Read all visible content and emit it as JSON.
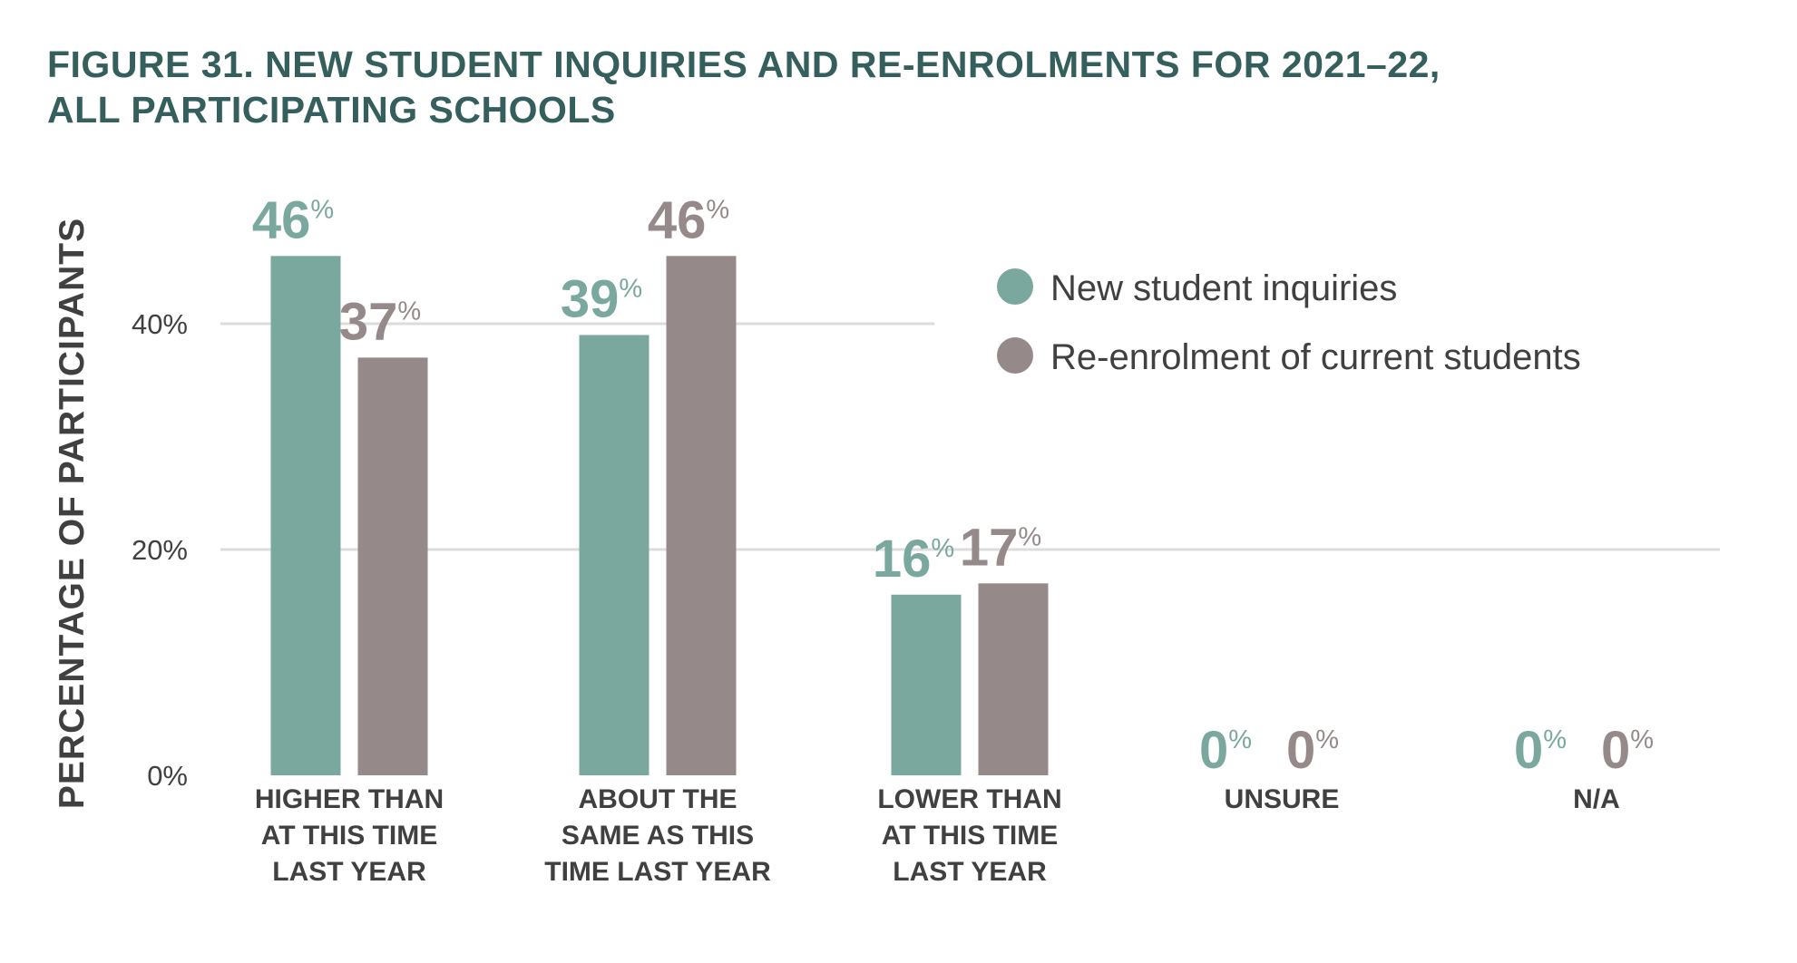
{
  "chart_data": {
    "type": "bar",
    "title_lines": [
      "FIGURE 31. NEW STUDENT INQUIRIES AND RE-ENROLMENTS FOR 2021–22,",
      "ALL PARTICIPATING SCHOOLS"
    ],
    "title": "FIGURE 31. NEW STUDENT INQUIRIES AND RE-ENROLMENTS FOR 2021–22, ALL PARTICIPATING SCHOOLS",
    "xlabel": "",
    "ylabel": "PERCENTAGE OF PARTICIPANTS",
    "ylim": [
      0,
      50
    ],
    "yticks": [
      0,
      20,
      40
    ],
    "ytick_labels": [
      "0%",
      "20%",
      "40%"
    ],
    "grid": true,
    "legend_position": "top-right",
    "categories": [
      [
        "HIGHER THAN",
        "AT THIS TIME",
        "LAST YEAR"
      ],
      [
        "ABOUT THE",
        "SAME AS THIS",
        "TIME LAST YEAR"
      ],
      [
        "LOWER THAN",
        "AT THIS TIME",
        "LAST YEAR"
      ],
      [
        "UNSURE"
      ],
      [
        "N/A"
      ]
    ],
    "series": [
      {
        "name": "New student inquiries",
        "color": "#7aa89e",
        "values": [
          46,
          39,
          16,
          0,
          0
        ]
      },
      {
        "name": "Re-enrolment of current students",
        "color": "#958a89",
        "values": [
          37,
          46,
          17,
          0,
          0
        ]
      }
    ],
    "value_suffix": "%"
  },
  "colors": {
    "title": "#355f5c",
    "text": "#404040",
    "grid": "#dcdcdc"
  }
}
